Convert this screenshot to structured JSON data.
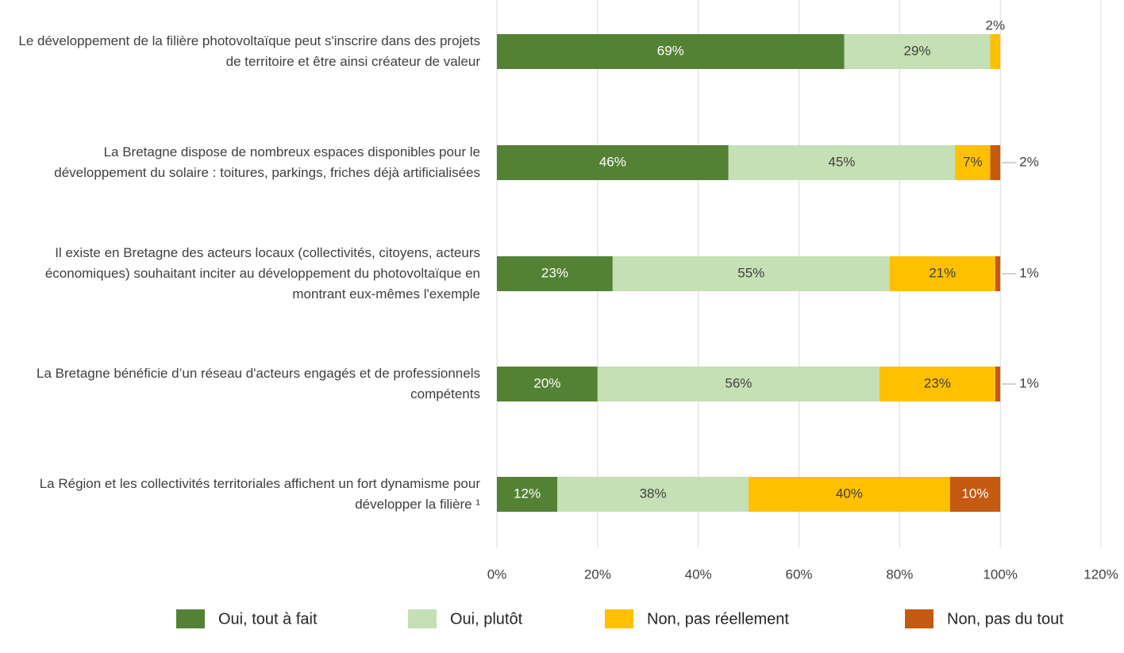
{
  "chart_data": {
    "type": "stacked_barh",
    "categories": [
      "Le développement de la filière photovoltaïque peut s'inscrire dans des projets de territoire et être ainsi créateur de valeur",
      "La Bretagne dispose de nombreux espaces disponibles pour le développement du solaire : toitures, parkings, friches déjà artificialisées",
      "Il existe en Bretagne des acteurs locaux (collectivités, citoyens, acteurs économiques) souhaitant inciter au développement du photovoltaïque en montrant eux-mêmes l'exemple",
      "La Bretagne bénéficie d’un réseau d'acteurs engagés et de professionnels compétents",
      "La Région et les collectivités territoriales affichent un fort dynamisme pour développer la filière ¹"
    ],
    "series": [
      {
        "name": "Oui, tout à fait",
        "color": "#548235",
        "values": [
          69,
          46,
          23,
          20,
          12
        ],
        "value_labels": [
          "69%",
          "46%",
          "23%",
          "20%",
          "12%"
        ]
      },
      {
        "name": "Oui, plutôt",
        "color": "#c5e0b4",
        "values": [
          29,
          45,
          55,
          56,
          38
        ],
        "value_labels": [
          "29%",
          "45%",
          "55%",
          "56%",
          "38%"
        ]
      },
      {
        "name": "Non, pas réellement",
        "color": "#ffc000",
        "values": [
          2,
          7,
          21,
          23,
          40
        ],
        "value_labels": [
          "2%",
          "7%",
          "21%",
          "23%",
          "40%"
        ]
      },
      {
        "name": "Non, pas du tout",
        "color": "#c55a11",
        "values": [
          0,
          2,
          1,
          1,
          10
        ],
        "value_labels": [
          null,
          "2%",
          "1%",
          "1%",
          "10%"
        ]
      }
    ],
    "xlim": [
      0,
      120
    ],
    "xticks": [
      {
        "value": 0,
        "label": "0%"
      },
      {
        "value": 20,
        "label": "20%"
      },
      {
        "value": 40,
        "label": "40%"
      },
      {
        "value": 60,
        "label": "60%"
      },
      {
        "value": 80,
        "label": "80%"
      },
      {
        "value": 100,
        "label": "100%"
      },
      {
        "value": 120,
        "label": "120%"
      }
    ],
    "grid": true
  }
}
